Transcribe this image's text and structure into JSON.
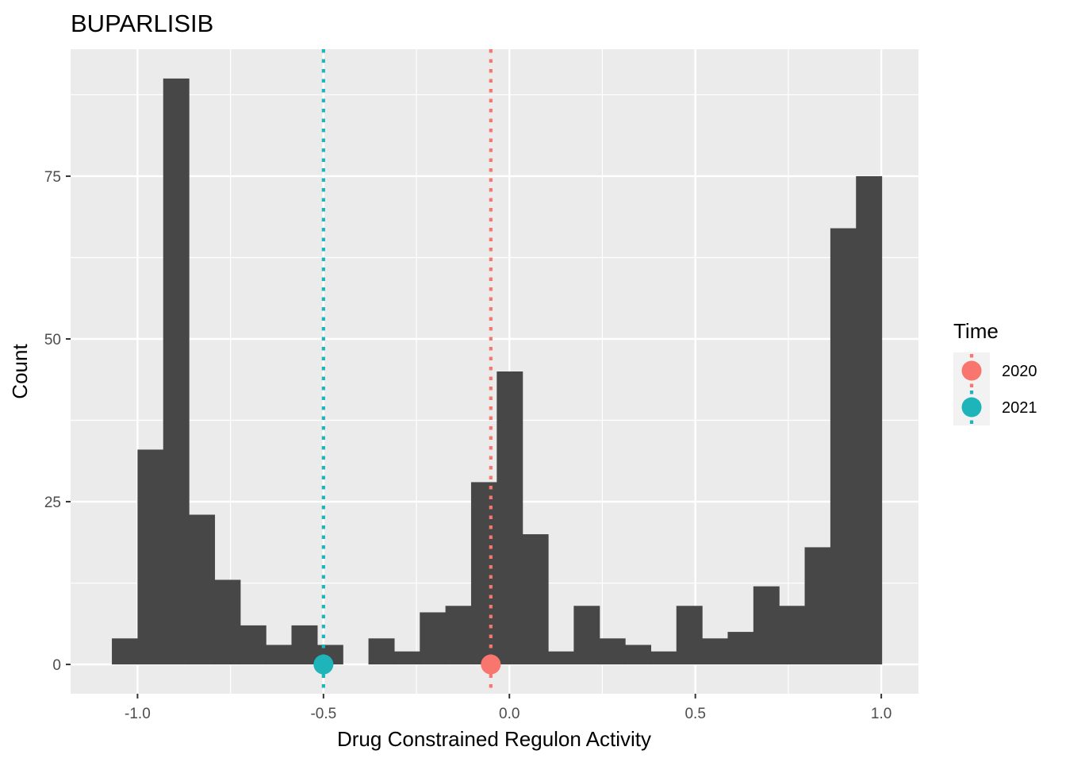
{
  "chart_data": {
    "type": "bar",
    "title": "BUPARLISIB",
    "xlabel": "Drug Constrained Regulon Activity",
    "ylabel": "Count",
    "xlim": [
      -1.18,
      1.1
    ],
    "ylim": [
      -4.5,
      94.5
    ],
    "x_ticks": [
      -1.0,
      -0.5,
      0.0,
      0.5,
      1.0
    ],
    "x_tick_labels": [
      "-1.0",
      "-0.5",
      "0.0",
      "0.5",
      "1.0"
    ],
    "y_ticks": [
      0,
      25,
      50,
      75
    ],
    "y_tick_labels": [
      "0",
      "25",
      "50",
      "75"
    ],
    "grid": true,
    "bin_width": 0.069,
    "bins": [
      {
        "x0": -1.069,
        "x1": -1.0,
        "count": 4
      },
      {
        "x0": -1.0,
        "x1": -0.931,
        "count": 33
      },
      {
        "x0": -0.931,
        "x1": -0.862,
        "count": 90
      },
      {
        "x0": -0.862,
        "x1": -0.793,
        "count": 23
      },
      {
        "x0": -0.793,
        "x1": -0.724,
        "count": 13
      },
      {
        "x0": -0.724,
        "x1": -0.655,
        "count": 6
      },
      {
        "x0": -0.655,
        "x1": -0.586,
        "count": 3
      },
      {
        "x0": -0.586,
        "x1": -0.517,
        "count": 6
      },
      {
        "x0": -0.517,
        "x1": -0.448,
        "count": 3
      },
      {
        "x0": -0.448,
        "x1": -0.379,
        "count": 0
      },
      {
        "x0": -0.379,
        "x1": -0.31,
        "count": 4
      },
      {
        "x0": -0.31,
        "x1": -0.241,
        "count": 2
      },
      {
        "x0": -0.241,
        "x1": -0.172,
        "count": 8
      },
      {
        "x0": -0.172,
        "x1": -0.103,
        "count": 9
      },
      {
        "x0": -0.103,
        "x1": -0.034,
        "count": 28
      },
      {
        "x0": -0.034,
        "x1": 0.035,
        "count": 45
      },
      {
        "x0": 0.035,
        "x1": 0.104,
        "count": 20
      },
      {
        "x0": 0.104,
        "x1": 0.173,
        "count": 2
      },
      {
        "x0": 0.173,
        "x1": 0.242,
        "count": 9
      },
      {
        "x0": 0.242,
        "x1": 0.311,
        "count": 4
      },
      {
        "x0": 0.311,
        "x1": 0.38,
        "count": 3
      },
      {
        "x0": 0.38,
        "x1": 0.449,
        "count": 2
      },
      {
        "x0": 0.449,
        "x1": 0.518,
        "count": 9
      },
      {
        "x0": 0.518,
        "x1": 0.587,
        "count": 4
      },
      {
        "x0": 0.587,
        "x1": 0.656,
        "count": 5
      },
      {
        "x0": 0.656,
        "x1": 0.725,
        "count": 12
      },
      {
        "x0": 0.725,
        "x1": 0.794,
        "count": 9
      },
      {
        "x0": 0.794,
        "x1": 0.863,
        "count": 18
      },
      {
        "x0": 0.863,
        "x1": 0.932,
        "count": 67
      },
      {
        "x0": 0.932,
        "x1": 1.001,
        "count": 75
      }
    ],
    "bar_color": "#474747",
    "markers": [
      {
        "name": "2020",
        "x": -0.05,
        "y": 0,
        "color": "#F8766D"
      },
      {
        "name": "2021",
        "x": -0.5,
        "y": 0,
        "color": "#1DB5B9"
      }
    ],
    "legend": {
      "title": "Time",
      "placement": "right",
      "entries": [
        "2020",
        "2021"
      ]
    },
    "panel_background": "#EBEBEB",
    "grid_color": "#FFFFFF"
  }
}
